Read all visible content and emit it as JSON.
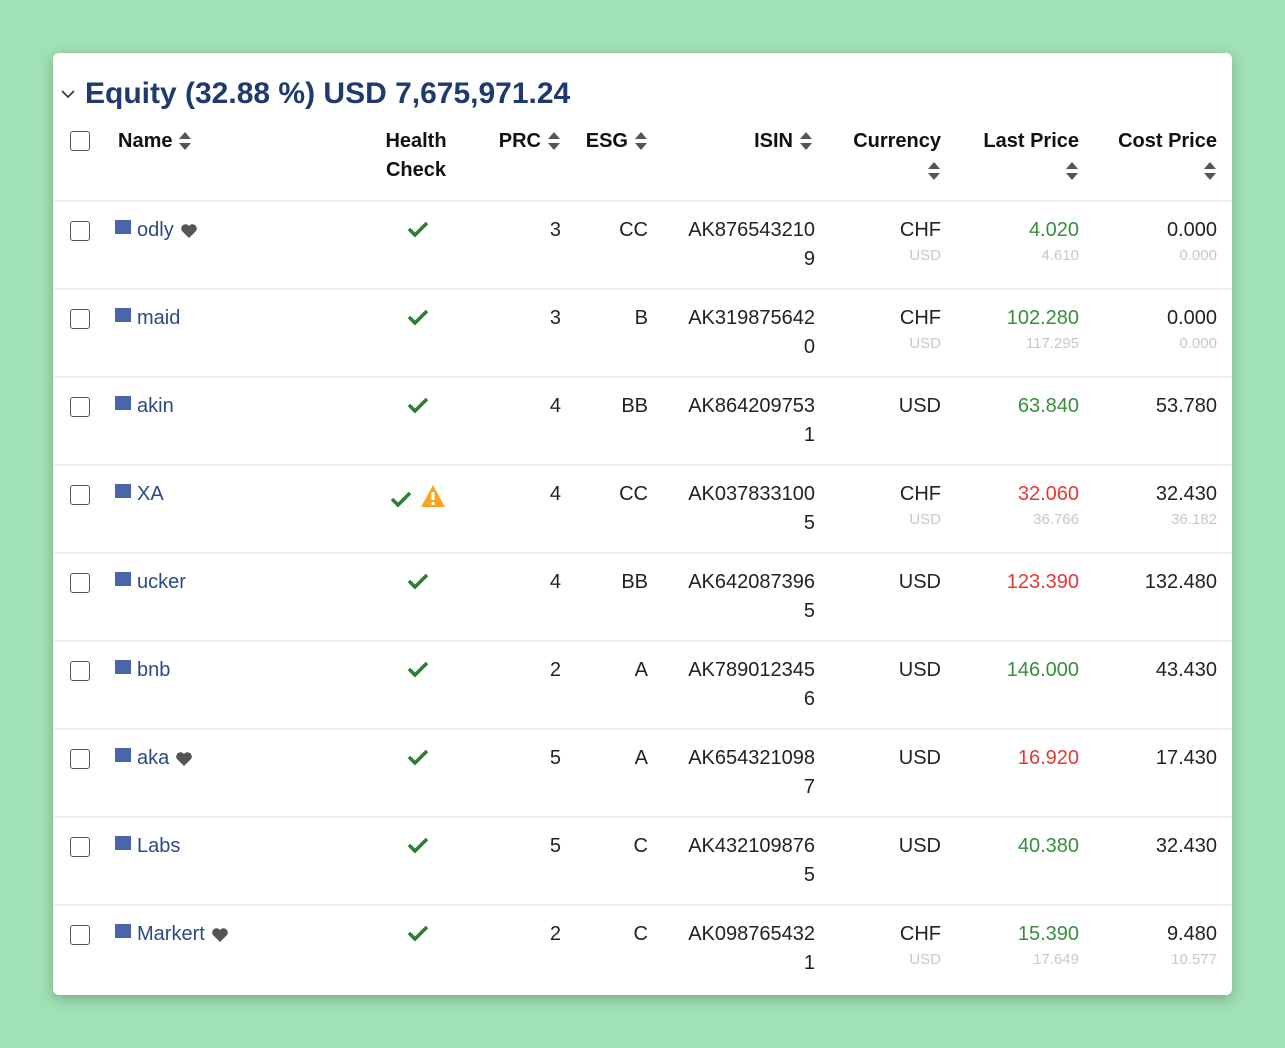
{
  "section": {
    "title": "Equity (32.88 %) USD 7,675,971.24"
  },
  "table": {
    "columns": [
      "Name",
      "Health Check",
      "PRC",
      "ESG",
      "ISIN",
      "Currency",
      "Last Price",
      "Cost Price"
    ],
    "rows": [
      {
        "name": "odly",
        "favorite": true,
        "health_warning": false,
        "prc": 3,
        "esg": "CC",
        "isin": "AK8765432109",
        "currency": "CHF",
        "currency_sub": "USD",
        "last_price": "4.020",
        "last_price_sub": "4.610",
        "trend": "up",
        "cost_price": "0.000",
        "cost_price_sub": "0.000"
      },
      {
        "name": "maid",
        "favorite": false,
        "health_warning": false,
        "prc": 3,
        "esg": "B",
        "isin": "AK3198756420",
        "currency": "CHF",
        "currency_sub": "USD",
        "last_price": "102.280",
        "last_price_sub": "117.295",
        "trend": "up",
        "cost_price": "0.000",
        "cost_price_sub": "0.000"
      },
      {
        "name": "akin",
        "favorite": false,
        "health_warning": false,
        "prc": 4,
        "esg": "BB",
        "isin": "AK8642097531",
        "currency": "USD",
        "last_price": "63.840",
        "trend": "up",
        "cost_price": "53.780"
      },
      {
        "name": "XA",
        "favorite": false,
        "health_warning": true,
        "prc": 4,
        "esg": "CC",
        "isin": "AK0378331005",
        "currency": "CHF",
        "currency_sub": "USD",
        "last_price": "32.060",
        "last_price_sub": "36.766",
        "trend": "down",
        "cost_price": "32.430",
        "cost_price_sub": "36.182"
      },
      {
        "name": "ucker",
        "favorite": false,
        "health_warning": false,
        "prc": 4,
        "esg": "BB",
        "isin": "AK6420873965",
        "currency": "USD",
        "last_price": "123.390",
        "trend": "down",
        "cost_price": "132.480"
      },
      {
        "name": "bnb",
        "favorite": false,
        "health_warning": false,
        "prc": 2,
        "esg": "A",
        "isin": "AK7890123456",
        "currency": "USD",
        "last_price": "146.000",
        "trend": "up",
        "cost_price": "43.430"
      },
      {
        "name": "aka",
        "favorite": true,
        "health_warning": false,
        "prc": 5,
        "esg": "A",
        "isin": "AK6543210987",
        "currency": "USD",
        "last_price": "16.920",
        "trend": "down",
        "cost_price": "17.430"
      },
      {
        "name": "Labs",
        "favorite": false,
        "health_warning": false,
        "prc": 5,
        "esg": "C",
        "isin": "AK4321098765",
        "currency": "USD",
        "last_price": "40.380",
        "trend": "up",
        "cost_price": "32.430"
      },
      {
        "name": "Markert",
        "favorite": true,
        "health_warning": false,
        "prc": 2,
        "esg": "C",
        "isin": "AK0987654321",
        "currency": "CHF",
        "currency_sub": "USD",
        "last_price": "15.390",
        "last_price_sub": "17.649",
        "trend": "up",
        "cost_price": "9.480",
        "cost_price_sub": "10.577"
      }
    ]
  }
}
